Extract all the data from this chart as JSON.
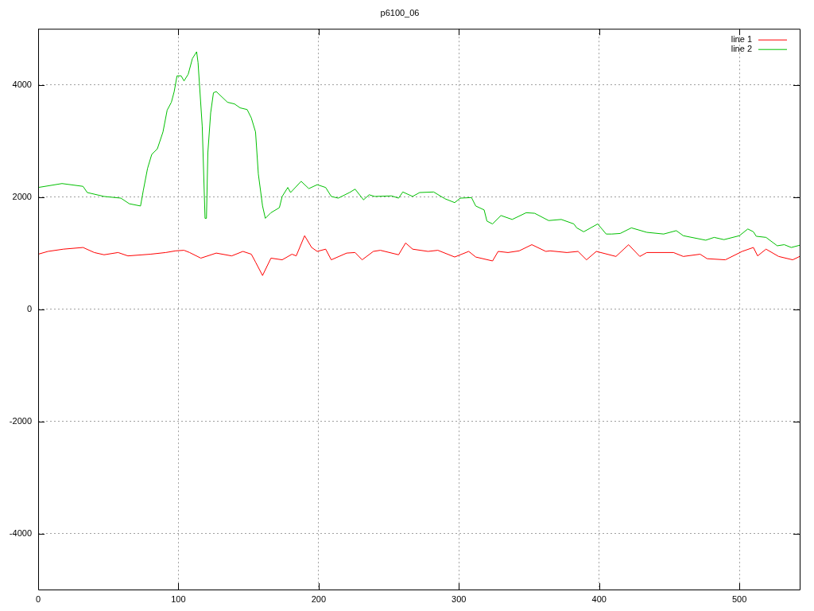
{
  "chart_data": {
    "type": "line",
    "title": "p6100_06",
    "xlim": [
      0,
      543
    ],
    "xticks": [
      0,
      100,
      200,
      300,
      400,
      500
    ],
    "ylim": [
      -5000,
      5000
    ],
    "yticks": [
      -4000,
      -2000,
      0,
      2000,
      4000
    ],
    "grid": true,
    "legend": "top right",
    "marker": "none",
    "line_style": "solid",
    "series": [
      {
        "name": "line 1",
        "color": "#ff0000",
        "x": [
          0,
          7,
          18,
          32,
          40,
          47,
          57,
          64,
          80,
          91,
          98,
          104,
          108,
          116,
          127,
          138,
          146,
          152,
          155,
          160,
          166,
          174,
          181,
          184,
          190,
          195,
          199,
          205,
          209,
          220,
          226,
          231,
          239,
          244,
          257,
          262,
          267,
          278,
          285,
          297,
          307,
          312,
          324,
          328,
          335,
          343,
          352,
          362,
          365,
          377,
          385,
          391,
          398,
          412,
          421,
          429,
          434,
          453,
          460,
          472,
          477,
          490,
          502,
          510,
          513,
          519,
          528,
          538,
          543
        ],
        "values": [
          980,
          1030,
          1070,
          1100,
          1010,
          970,
          1010,
          950,
          980,
          1010,
          1040,
          1050,
          1010,
          910,
          1000,
          950,
          1030,
          980,
          840,
          600,
          910,
          880,
          980,
          950,
          1310,
          1100,
          1030,
          1070,
          880,
          1000,
          1010,
          880,
          1030,
          1050,
          970,
          1180,
          1070,
          1030,
          1050,
          930,
          1030,
          930,
          860,
          1030,
          1010,
          1040,
          1150,
          1030,
          1040,
          1010,
          1030,
          880,
          1030,
          940,
          1150,
          940,
          1010,
          1010,
          940,
          980,
          900,
          880,
          1030,
          1100,
          950,
          1070,
          940,
          880,
          940
        ]
      },
      {
        "name": "line 2",
        "color": "#00c000",
        "x": [
          0,
          17,
          32,
          35,
          47,
          59,
          65,
          73,
          75,
          78,
          81,
          85,
          89,
          92,
          95,
          97,
          99,
          102,
          104,
          107,
          110,
          113,
          114,
          117,
          119,
          120,
          121,
          123,
          125,
          127,
          135,
          140,
          144,
          149,
          152,
          155,
          157,
          160,
          162,
          166,
          172,
          174,
          178,
          180,
          187.5,
          193,
          199,
          205,
          209,
          214,
          222,
          226,
          232,
          236,
          240,
          252,
          257,
          260,
          267,
          272,
          282,
          290,
          297,
          301,
          309,
          312,
          318,
          320,
          324,
          330,
          338,
          348,
          354,
          364,
          373,
          382,
          384,
          389,
          399,
          405,
          409,
          415,
          423,
          434,
          446,
          455,
          460,
          476,
          482,
          489,
          500,
          506,
          510,
          512,
          519,
          527,
          532,
          537,
          543
        ],
        "values": [
          2170,
          2240,
          2190,
          2080,
          2010,
          1980,
          1880,
          1840,
          2120,
          2510,
          2760,
          2860,
          3160,
          3550,
          3690,
          3880,
          4160,
          4160,
          4070,
          4190,
          4470,
          4590,
          4400,
          3260,
          1620,
          1620,
          2790,
          3500,
          3860,
          3880,
          3690,
          3660,
          3590,
          3560,
          3410,
          3160,
          2410,
          1840,
          1620,
          1720,
          1810,
          2010,
          2170,
          2080,
          2280,
          2150,
          2220,
          2170,
          2010,
          1980,
          2080,
          2140,
          1950,
          2040,
          2010,
          2020,
          1980,
          2090,
          2010,
          2080,
          2090,
          1970,
          1900,
          1980,
          1990,
          1840,
          1770,
          1570,
          1520,
          1670,
          1600,
          1720,
          1710,
          1580,
          1600,
          1520,
          1450,
          1380,
          1520,
          1340,
          1340,
          1350,
          1450,
          1370,
          1340,
          1400,
          1310,
          1230,
          1280,
          1240,
          1310,
          1430,
          1380,
          1300,
          1280,
          1130,
          1150,
          1100,
          1140
        ]
      }
    ]
  }
}
